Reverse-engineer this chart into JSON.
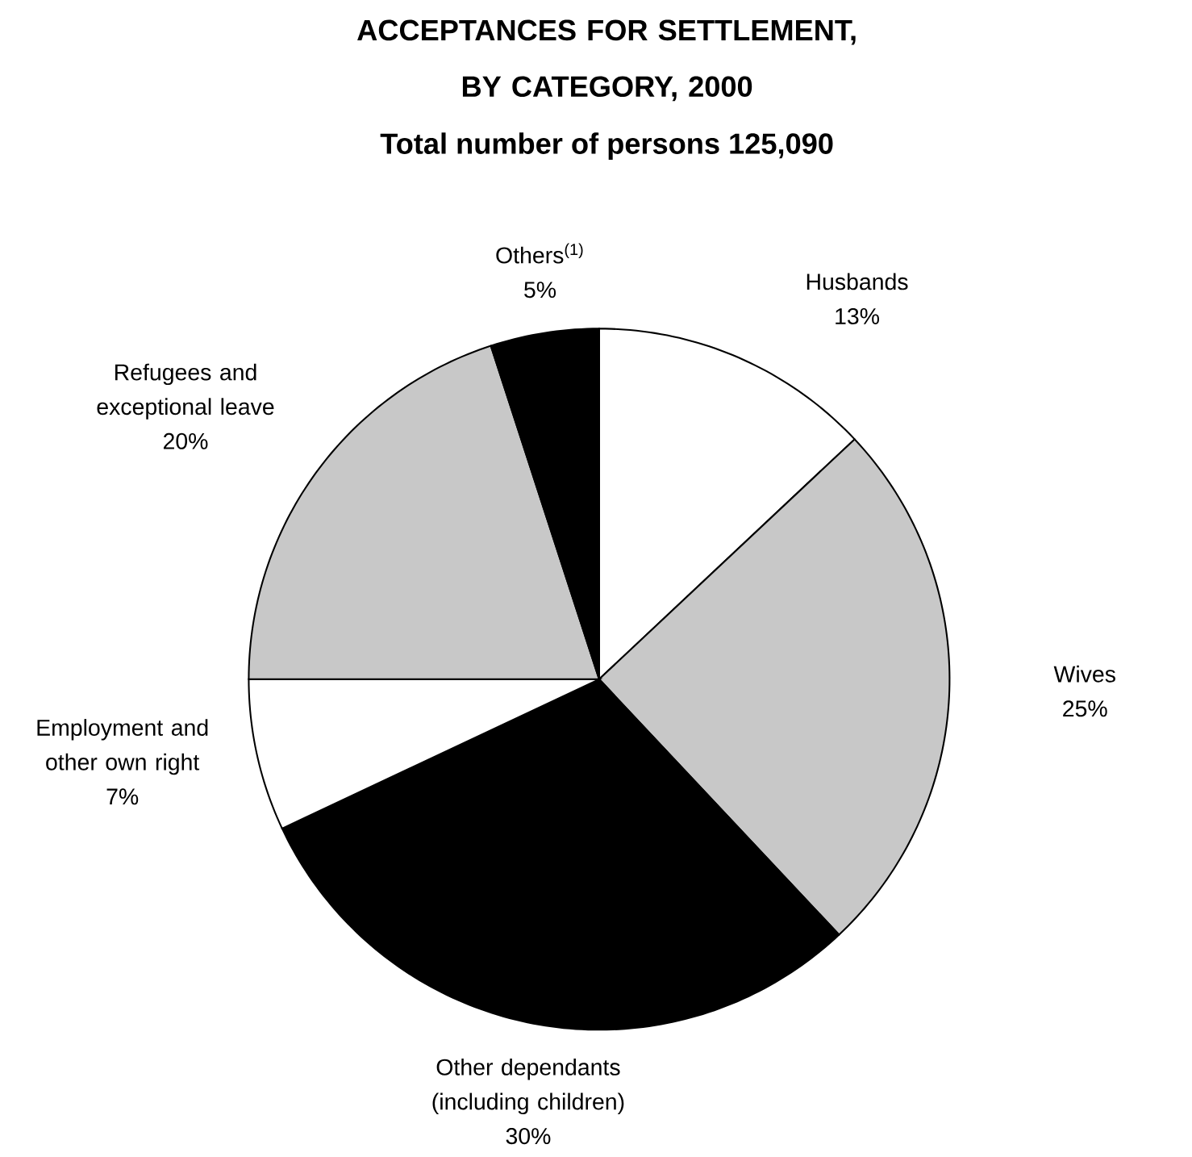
{
  "chart_data": {
    "type": "pie",
    "title": "ACCEPTANCES FOR SETTLEMENT, BY CATEGORY, 2000",
    "subtitle": "Total number of persons 125,090",
    "categories": [
      "Husbands",
      "Wives",
      "Other dependants (including children)",
      "Employment and other own right",
      "Refugees and exceptional leave",
      "Others$^{(1)}$"
    ],
    "values": [
      13,
      25,
      30,
      7,
      20,
      5
    ],
    "value_labels": [
      "13%",
      "25%",
      "30%",
      "7%",
      "20%",
      "5%"
    ],
    "colors": [
      "#ffffff",
      "#c8c8c8",
      "#000000",
      "#ffffff",
      "#c8c8c8",
      "#000000"
    ]
  }
}
